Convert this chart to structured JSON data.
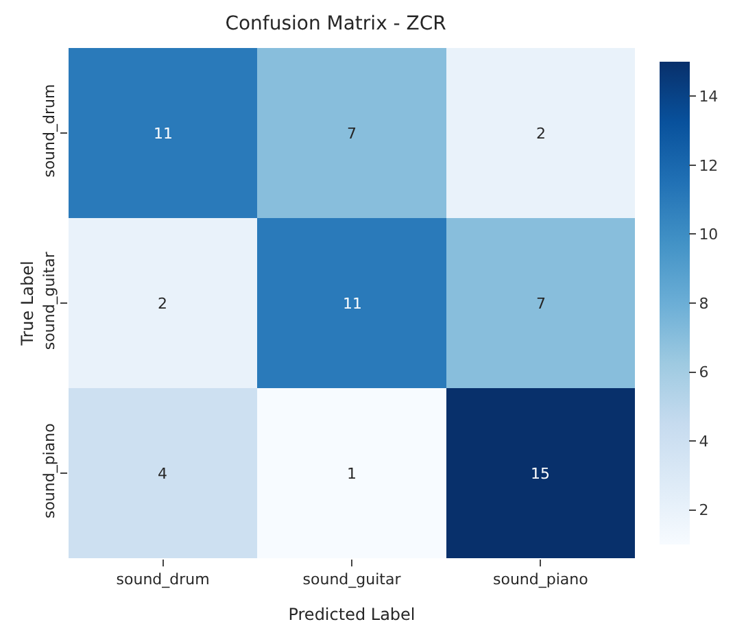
{
  "chart_data": {
    "type": "heatmap",
    "title": "Confusion Matrix - ZCR",
    "xlabel": "Predicted Label",
    "ylabel": "True Label",
    "categories": [
      "sound_drum",
      "sound_guitar",
      "sound_piano"
    ],
    "y_categories": [
      "sound_drum",
      "sound_guitar",
      "sound_piano"
    ],
    "cells": [
      [
        11,
        7,
        2
      ],
      [
        2,
        11,
        7
      ],
      [
        4,
        1,
        15
      ]
    ],
    "data_labels": true,
    "clim": [
      1,
      15
    ],
    "cticks": [
      2,
      4,
      6,
      8,
      10,
      12,
      14
    ]
  }
}
